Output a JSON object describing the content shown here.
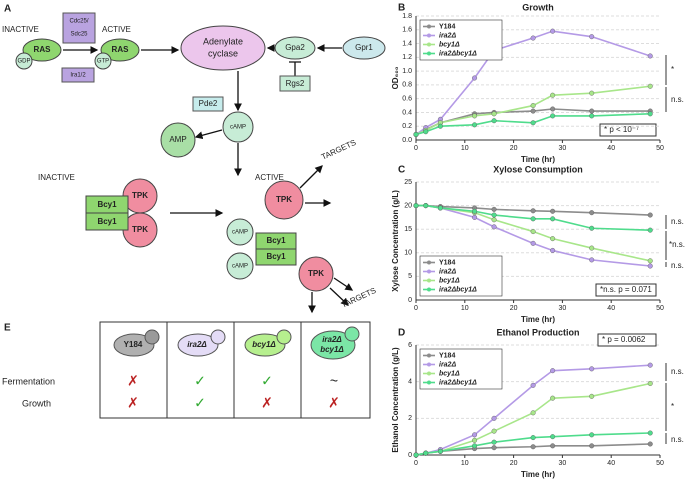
{
  "panel_labels": [
    "A",
    "B",
    "C",
    "D",
    "E"
  ],
  "diagram": {
    "inactive_top": "INACTIVE",
    "active_top": "ACTIVE",
    "cdc25": "Cdc25/",
    "sdc25": "Sdc25",
    "ras_inactive": "RAS",
    "gdp": "GDP",
    "ras_active": "RAS",
    "gtp": "GTP",
    "ira": "Ira1/2",
    "adenylate": "Adenylate",
    "cyclase": "cyclase",
    "gpa2": "Gpa2",
    "gpr1": "Gpr1",
    "rgs2": "Rgs2",
    "pde2": "Pde2",
    "amp": "AMP",
    "camp": "cAMP",
    "inactive_pka": "INACTIVE",
    "active_pka": "ACTIVE",
    "tpk_in_1": "TPK",
    "tpk_in_2": "TPK",
    "bcy1_in_1": "Bcy1",
    "bcy1_in_2": "Bcy1",
    "tpk_act_1": "TPK",
    "targets_1": "TARGETS",
    "camp_b1": "cAMP",
    "camp_b2": "cAMP",
    "bcy1_b1": "Bcy1",
    "bcy1_b2": "Bcy1",
    "tpk_act_2": "TPK",
    "targets_2": "TARGETS"
  },
  "table": {
    "columns": [
      "Y184",
      "ira2Δ",
      "bcy1Δ",
      "ira2Δ",
      "bcy1Δ"
    ],
    "rows": [
      {
        "label": "Fermentation",
        "cells": [
          "✗",
          "✓",
          "✓",
          "~"
        ]
      },
      {
        "label": "Growth",
        "cells": [
          "✗",
          "✓",
          "✗",
          "✗"
        ]
      }
    ]
  },
  "chart_data": [
    {
      "type": "line",
      "title": "Growth",
      "x_label": "Time (hr)",
      "y_label": "OD₆₀₀",
      "x": [
        0,
        2,
        5,
        12,
        16,
        24,
        28,
        36,
        48
      ],
      "series": [
        {
          "name": "Y184",
          "color": "#8c8c8c",
          "values": [
            0.08,
            0.15,
            0.25,
            0.38,
            0.4,
            0.42,
            0.45,
            0.42,
            0.42
          ]
        },
        {
          "name": "ira2Δ",
          "color": "#b49ae6",
          "values": [
            0.08,
            0.18,
            0.3,
            0.9,
            1.3,
            1.48,
            1.58,
            1.5,
            1.22
          ]
        },
        {
          "name": "bcy1Δ",
          "color": "#a8e68a",
          "values": [
            0.08,
            0.14,
            0.25,
            0.35,
            0.38,
            0.5,
            0.65,
            0.68,
            0.78
          ]
        },
        {
          "name": "ira2Δbcy1Δ",
          "color": "#4fdc8c",
          "values": [
            0.08,
            0.12,
            0.2,
            0.22,
            0.28,
            0.25,
            0.35,
            0.35,
            0.38
          ]
        }
      ],
      "xlim": [
        0,
        50
      ],
      "xticks": [
        0,
        10,
        20,
        30,
        40,
        50
      ],
      "ylim": [
        0,
        1.8
      ],
      "yticks": [
        {
          "value": 0,
          "label": "0.0"
        },
        0.2,
        0.4,
        0.6,
        0.8,
        {
          "value": 1,
          "label": "1.0"
        },
        1.2,
        1.4,
        1.6,
        1.8
      ],
      "grid": true,
      "legend": "upper left",
      "annotations": [
        "*",
        "n.s.",
        "* p < 10⁻⁷"
      ]
    },
    {
      "type": "line",
      "title": "Xylose Consumption",
      "x_label": "Time (hr)",
      "y_label": "Xylose Concentration (g/L)",
      "x": [
        0,
        2,
        5,
        12,
        16,
        24,
        28,
        36,
        48
      ],
      "series": [
        {
          "name": "Y184",
          "color": "#8c8c8c",
          "values": [
            20,
            20,
            19.8,
            19.5,
            19.2,
            18.9,
            18.8,
            18.5,
            18
          ]
        },
        {
          "name": "ira2Δ",
          "color": "#b49ae6",
          "values": [
            20,
            20,
            19.5,
            17.5,
            15.5,
            12,
            10.5,
            8.5,
            7.2
          ]
        },
        {
          "name": "bcy1Δ",
          "color": "#a8e68a",
          "values": [
            20,
            20,
            19.5,
            18.5,
            17,
            14.5,
            13,
            11,
            8.3
          ]
        },
        {
          "name": "ira2Δbcy1Δ",
          "color": "#4fdc8c",
          "values": [
            20,
            20,
            19.5,
            18.8,
            18,
            17.2,
            17.2,
            15.2,
            14.8
          ]
        }
      ],
      "xlim": [
        0,
        50
      ],
      "xticks": [
        0,
        10,
        20,
        30,
        40,
        50
      ],
      "ylim": [
        0,
        25
      ],
      "yticks": [
        0,
        5,
        10,
        15,
        20,
        25
      ],
      "grid": true,
      "legend": "lower left",
      "annotations": [
        "n.s.",
        "*n.s.",
        "n.s.",
        "*n.s. p = 0.071"
      ]
    },
    {
      "type": "line",
      "title": "Ethanol Production",
      "x_label": "Time (hr)",
      "y_label": "Ethanol Concentration (g/L)",
      "x": [
        0,
        2,
        5,
        12,
        16,
        24,
        28,
        36,
        48
      ],
      "series": [
        {
          "name": "Y184",
          "color": "#8c8c8c",
          "values": [
            0,
            0.1,
            0.2,
            0.35,
            0.4,
            0.45,
            0.5,
            0.5,
            0.6
          ]
        },
        {
          "name": "ira2Δ",
          "color": "#b49ae6",
          "values": [
            0,
            0.1,
            0.3,
            1.1,
            2,
            3.8,
            4.6,
            4.7,
            4.9
          ]
        },
        {
          "name": "bcy1Δ",
          "color": "#a8e68a",
          "values": [
            0,
            0.1,
            0.2,
            0.8,
            1.3,
            2.3,
            3.1,
            3.2,
            3.9
          ]
        },
        {
          "name": "ira2Δbcy1Δ",
          "color": "#4fdc8c",
          "values": [
            0,
            0.1,
            0.2,
            0.5,
            0.7,
            0.95,
            1,
            1.1,
            1.2
          ]
        }
      ],
      "xlim": [
        0,
        50
      ],
      "xticks": [
        0,
        10,
        20,
        30,
        40,
        50
      ],
      "ylim": [
        0,
        6
      ],
      "yticks": [
        0,
        2,
        4,
        6
      ],
      "grid": true,
      "legend": "upper left",
      "annotations": [
        "* p = 0.0062",
        "n.s.",
        "*",
        "n.s."
      ]
    }
  ]
}
